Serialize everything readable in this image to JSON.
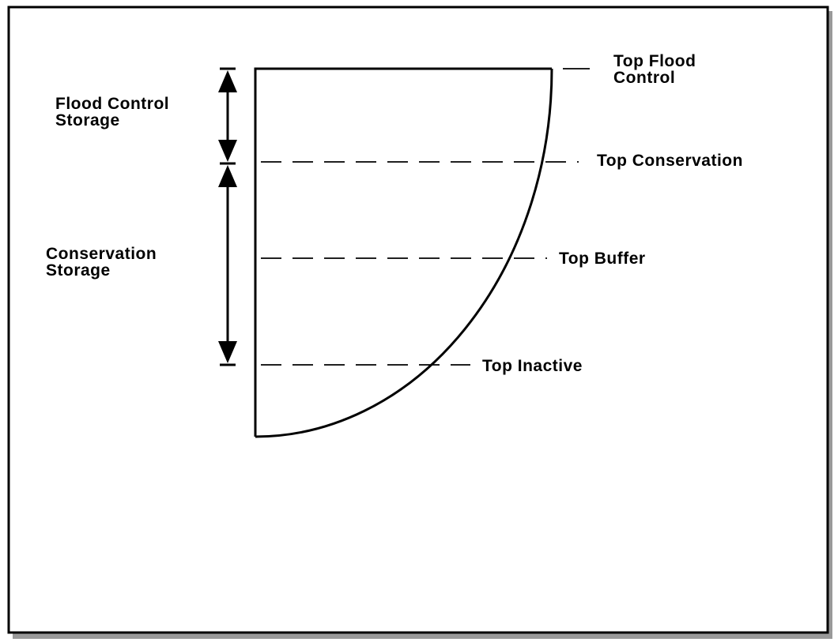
{
  "levels": [
    {
      "label": [
        "Top Flood",
        "Control"
      ]
    },
    {
      "label": [
        "Top Conservation"
      ]
    },
    {
      "label": [
        "Top Buffer"
      ]
    },
    {
      "label": [
        "Top Inactive"
      ]
    }
  ],
  "zones": [
    {
      "label": [
        "Flood Control",
        "Storage"
      ]
    },
    {
      "label": [
        "Conservation",
        "Storage"
      ]
    }
  ]
}
